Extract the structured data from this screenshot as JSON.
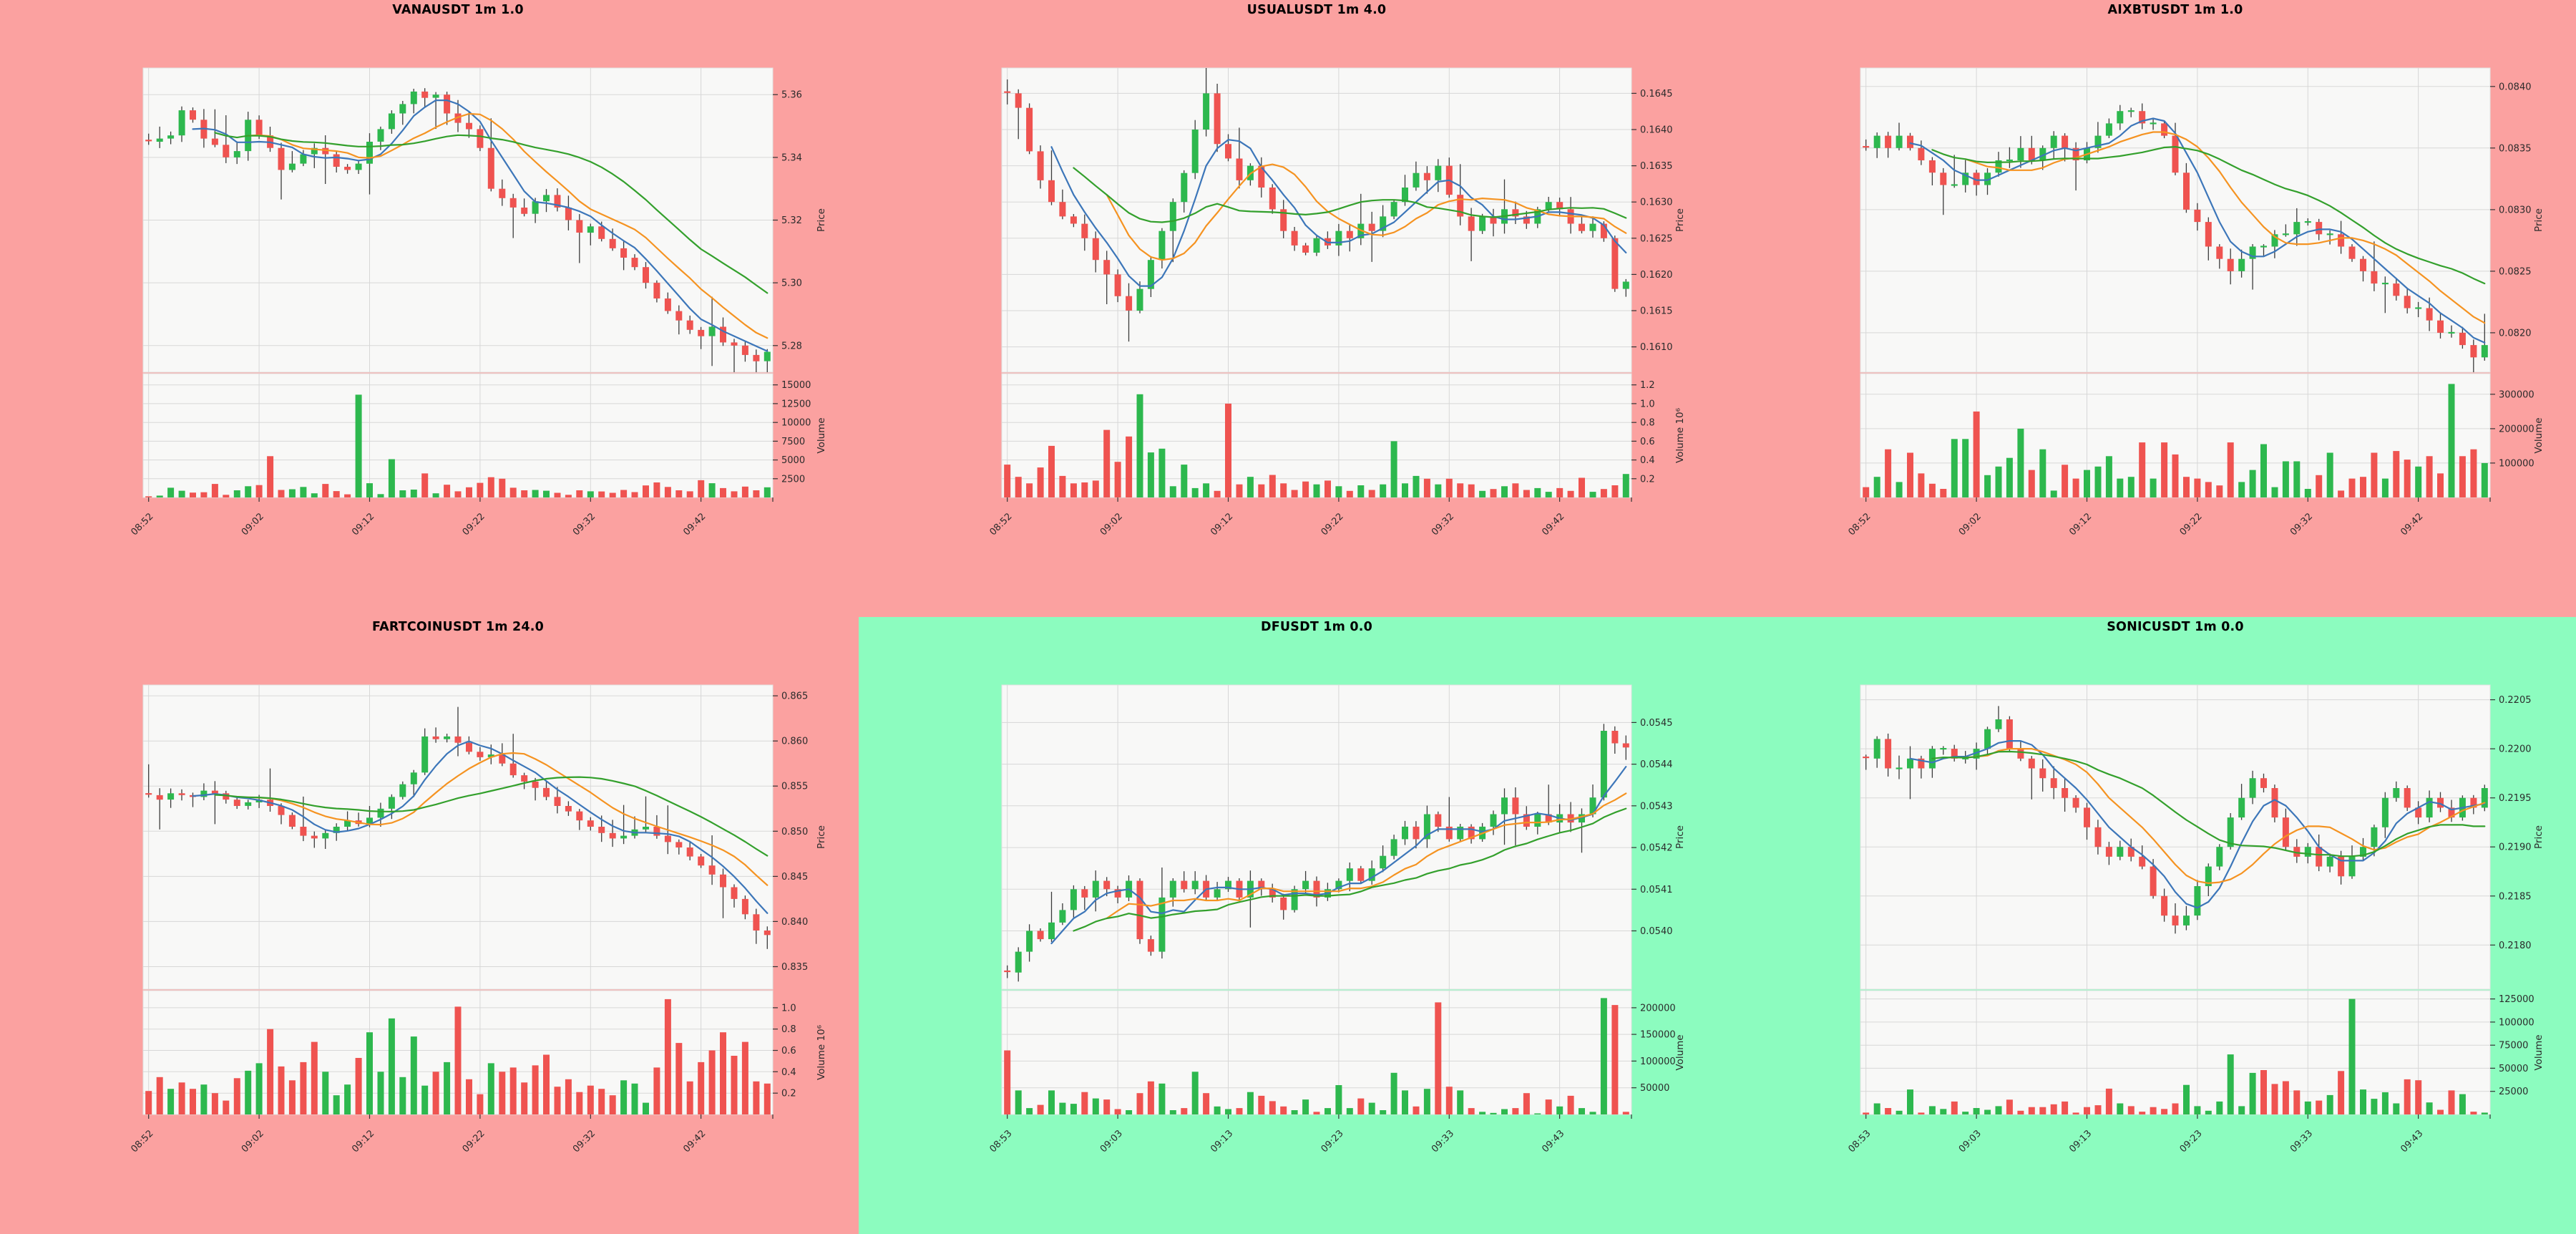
{
  "colors": {
    "up": "#2db84e",
    "down": "#ef5350",
    "wick": "#3b3b3b",
    "ma_fast": "#3c76b9",
    "ma_mid": "#f59321",
    "ma_slow": "#33a02c",
    "plot_bg": "#f8f8f7",
    "grid": "#d7d7d7",
    "frame": "#e2e2e2",
    "tick_text": "#2b2b2b",
    "bg_loss": "#fba1a0",
    "bg_gain": "#8cfcbf"
  },
  "chart_data": [
    {
      "type": "candlestick",
      "title": "VANAUSDT 1m 1.0",
      "background": "#fba1a0",
      "ylabel": "Price",
      "ylabel2": "Volume",
      "x_tick_labels": [
        "08:52",
        "09:02",
        "09:12",
        "09:22",
        "09:32",
        "09:42"
      ],
      "price_ticks": [
        5.36,
        5.34,
        5.32,
        5.3,
        5.28
      ],
      "price_tick_labels": [
        "5.36",
        "5.34",
        "5.32",
        "5.30",
        "5.28"
      ],
      "price_range": [
        5.2715,
        5.3685
      ],
      "volume_ticks": [
        15000,
        12500,
        10000,
        7500,
        5000,
        2500
      ],
      "volume_tick_labels": [
        "15000",
        "12500",
        "10000",
        "7500",
        "5000",
        "2500"
      ],
      "volume_max": 16500,
      "close": [
        5.345,
        5.346,
        5.347,
        5.355,
        5.352,
        5.346,
        5.344,
        5.34,
        5.342,
        5.352,
        5.347,
        5.343,
        5.336,
        5.338,
        5.341,
        5.343,
        5.341,
        5.337,
        5.336,
        5.338,
        5.345,
        5.349,
        5.354,
        5.357,
        5.361,
        5.359,
        5.36,
        5.354,
        5.351,
        5.349,
        5.343,
        5.33,
        5.327,
        5.324,
        5.322,
        5.326,
        5.328,
        5.324,
        5.32,
        5.316,
        5.318,
        5.314,
        5.311,
        5.308,
        5.305,
        5.3,
        5.295,
        5.291,
        5.288,
        5.285,
        5.283,
        5.286,
        5.281,
        5.28,
        5.277,
        5.275,
        5.278
      ],
      "volume": [
        150,
        250,
        1300,
        900,
        650,
        700,
        1800,
        350,
        950,
        1500,
        1650,
        5500,
        1000,
        1100,
        1400,
        550,
        1800,
        850,
        420,
        13700,
        1900,
        450,
        5100,
        950,
        1050,
        3200,
        550,
        1700,
        820,
        1350,
        1950,
        2700,
        2500,
        1300,
        950,
        1000,
        900,
        620,
        350,
        950,
        820,
        800,
        620,
        1000,
        720,
        1600,
        2000,
        1400,
        950,
        820,
        2300,
        1900,
        1250,
        820,
        1450,
        950,
        1350
      ]
    },
    {
      "type": "candlestick",
      "title": "USUALUSDT 1m 4.0",
      "background": "#fba1a0",
      "ylabel": "Price",
      "ylabel2": "Volume 10⁶",
      "x_tick_labels": [
        "08:52",
        "09:02",
        "09:12",
        "09:22",
        "09:32",
        "09:42"
      ],
      "price_ticks": [
        0.1645,
        0.164,
        0.1635,
        0.163,
        0.1625,
        0.162,
        0.1615,
        0.161
      ],
      "price_tick_labels": [
        "0.1645",
        "0.1640",
        "0.1635",
        "0.1630",
        "0.1625",
        "0.1620",
        "0.1615",
        "0.1610"
      ],
      "price_range": [
        0.16065,
        0.16485
      ],
      "volume_ticks": [
        1.2,
        1.0,
        0.8,
        0.6,
        0.4,
        0.2
      ],
      "volume_tick_labels": [
        "1.2",
        "1.0",
        "0.8",
        "0.6",
        "0.4",
        "0.2"
      ],
      "volume_max": 1.32,
      "close": [
        0.1645,
        0.1643,
        0.1637,
        0.1633,
        0.163,
        0.1628,
        0.1627,
        0.1625,
        0.1622,
        0.162,
        0.1617,
        0.1615,
        0.1618,
        0.1622,
        0.1626,
        0.163,
        0.1634,
        0.164,
        0.1645,
        0.1638,
        0.1636,
        0.1633,
        0.1635,
        0.1632,
        0.1629,
        0.1626,
        0.1624,
        0.1623,
        0.1625,
        0.1624,
        0.1626,
        0.1625,
        0.1627,
        0.1626,
        0.1628,
        0.163,
        0.1632,
        0.1634,
        0.1633,
        0.1635,
        0.1631,
        0.1628,
        0.1626,
        0.1628,
        0.1627,
        0.1629,
        0.1628,
        0.1627,
        0.1629,
        0.163,
        0.1629,
        0.1627,
        0.1626,
        0.1627,
        0.1625,
        0.1618,
        0.1619
      ],
      "volume": [
        0.35,
        0.22,
        0.15,
        0.32,
        0.55,
        0.23,
        0.15,
        0.16,
        0.18,
        0.72,
        0.38,
        0.65,
        1.1,
        0.48,
        0.52,
        0.12,
        0.35,
        0.1,
        0.15,
        0.07,
        1.0,
        0.14,
        0.22,
        0.14,
        0.24,
        0.15,
        0.08,
        0.17,
        0.14,
        0.18,
        0.12,
        0.07,
        0.13,
        0.08,
        0.14,
        0.6,
        0.15,
        0.23,
        0.2,
        0.14,
        0.2,
        0.15,
        0.14,
        0.07,
        0.09,
        0.12,
        0.15,
        0.08,
        0.1,
        0.06,
        0.1,
        0.07,
        0.21,
        0.06,
        0.09,
        0.13,
        0.25
      ]
    },
    {
      "type": "candlestick",
      "title": "AIXBTUSDT 1m 1.0",
      "background": "#fba1a0",
      "ylabel": "Price",
      "ylabel2": "Volume",
      "x_tick_labels": [
        "08:52",
        "09:02",
        "09:12",
        "09:22",
        "09:32",
        "09:42"
      ],
      "price_ticks": [
        0.084,
        0.0835,
        0.083,
        0.0825,
        0.082
      ],
      "price_tick_labels": [
        "0.0840",
        "0.0835",
        "0.0830",
        "0.0825",
        "0.0820"
      ],
      "price_range": [
        0.08168,
        0.08415
      ],
      "volume_ticks": [
        300000,
        200000,
        100000
      ],
      "volume_tick_labels": [
        "300000",
        "200000",
        "100000"
      ],
      "volume_max": 360000,
      "close": [
        0.0835,
        0.0836,
        0.0835,
        0.0836,
        0.0835,
        0.0834,
        0.0833,
        0.0832,
        0.0832,
        0.0833,
        0.0832,
        0.0833,
        0.0834,
        0.0834,
        0.0835,
        0.0834,
        0.0835,
        0.0836,
        0.0835,
        0.0834,
        0.0835,
        0.0836,
        0.0837,
        0.0838,
        0.0838,
        0.0837,
        0.0837,
        0.0836,
        0.0833,
        0.083,
        0.0829,
        0.0827,
        0.0826,
        0.0825,
        0.0826,
        0.0827,
        0.0827,
        0.0828,
        0.0828,
        0.0829,
        0.0829,
        0.0828,
        0.0828,
        0.0827,
        0.0826,
        0.0825,
        0.0824,
        0.0824,
        0.0823,
        0.0822,
        0.0822,
        0.0821,
        0.082,
        0.082,
        0.0819,
        0.0818,
        0.0819
      ],
      "volume": [
        30000,
        60000,
        140000,
        45000,
        130000,
        70000,
        40000,
        25000,
        170000,
        170000,
        250000,
        65000,
        90000,
        115000,
        200000,
        80000,
        140000,
        20000,
        95000,
        55000,
        80000,
        90000,
        120000,
        55000,
        60000,
        160000,
        55000,
        160000,
        125000,
        60000,
        55000,
        45000,
        35000,
        160000,
        45000,
        80000,
        155000,
        30000,
        105000,
        105000,
        25000,
        65000,
        130000,
        20000,
        55000,
        60000,
        130000,
        55000,
        135000,
        110000,
        90000,
        120000,
        70000,
        330000,
        120000,
        140000,
        100000
      ]
    },
    {
      "type": "candlestick",
      "title": "FARTCOINUSDT 1m 24.0",
      "background": "#fba1a0",
      "ylabel": "Price",
      "ylabel2": "Volume 10⁶",
      "x_tick_labels": [
        "08:52",
        "09:02",
        "09:12",
        "09:22",
        "09:32",
        "09:42"
      ],
      "price_ticks": [
        0.865,
        0.86,
        0.855,
        0.85,
        0.845,
        0.84,
        0.835
      ],
      "price_tick_labels": [
        "0.865",
        "0.860",
        "0.855",
        "0.850",
        "0.845",
        "0.840",
        "0.835"
      ],
      "price_range": [
        0.8325,
        0.8662
      ],
      "volume_ticks": [
        1.0,
        0.8,
        0.6,
        0.4,
        0.2
      ],
      "volume_tick_labels": [
        "1.0",
        "0.8",
        "0.6",
        "0.4",
        "0.2"
      ],
      "volume_max": 1.16,
      "close": [
        0.854,
        0.8535,
        0.8542,
        0.854,
        0.8538,
        0.8545,
        0.8542,
        0.8535,
        0.8528,
        0.8532,
        0.8535,
        0.8528,
        0.8518,
        0.8505,
        0.8495,
        0.8492,
        0.8498,
        0.8505,
        0.8512,
        0.8508,
        0.8515,
        0.8525,
        0.8538,
        0.8552,
        0.8565,
        0.8605,
        0.8602,
        0.8605,
        0.8598,
        0.8588,
        0.8582,
        0.8585,
        0.8575,
        0.8562,
        0.8555,
        0.8548,
        0.8538,
        0.8528,
        0.8522,
        0.8512,
        0.8505,
        0.8498,
        0.8492,
        0.8495,
        0.8502,
        0.8505,
        0.8495,
        0.8488,
        0.8482,
        0.8472,
        0.8462,
        0.8452,
        0.8438,
        0.8425,
        0.8408,
        0.839,
        0.8385
      ],
      "volume": [
        0.22,
        0.35,
        0.24,
        0.3,
        0.24,
        0.28,
        0.2,
        0.13,
        0.34,
        0.41,
        0.48,
        0.8,
        0.45,
        0.32,
        0.49,
        0.68,
        0.4,
        0.18,
        0.28,
        0.53,
        0.77,
        0.4,
        0.9,
        0.35,
        0.73,
        0.27,
        0.4,
        0.49,
        1.01,
        0.33,
        0.19,
        0.48,
        0.4,
        0.44,
        0.3,
        0.46,
        0.56,
        0.26,
        0.33,
        0.21,
        0.27,
        0.24,
        0.18,
        0.32,
        0.29,
        0.11,
        0.44,
        1.08,
        0.67,
        0.31,
        0.49,
        0.6,
        0.77,
        0.55,
        0.68,
        0.31,
        0.29
      ]
    },
    {
      "type": "candlestick",
      "title": "DFUSDT 1m 0.0",
      "background": "#8cfcbf",
      "ylabel": "Price",
      "ylabel2": "Volume",
      "x_tick_labels": [
        "08:53",
        "09:03",
        "09:13",
        "09:23",
        "09:33",
        "09:43"
      ],
      "price_ticks": [
        0.0545,
        0.0544,
        0.0543,
        0.0542,
        0.0541,
        0.054
      ],
      "price_tick_labels": [
        "0.0545",
        "0.0544",
        "0.0543",
        "0.0542",
        "0.0541",
        "0.0540"
      ],
      "price_range": [
        0.05386,
        0.05459
      ],
      "volume_ticks": [
        200000,
        150000,
        100000,
        50000
      ],
      "volume_tick_labels": [
        "200000",
        "150000",
        "100000",
        "50000"
      ],
      "volume_max": 232000,
      "close": [
        0.0539,
        0.05395,
        0.054,
        0.05398,
        0.05402,
        0.05405,
        0.0541,
        0.05408,
        0.05412,
        0.0541,
        0.05408,
        0.05412,
        0.05398,
        0.05395,
        0.05408,
        0.05412,
        0.0541,
        0.05412,
        0.05408,
        0.0541,
        0.05412,
        0.05408,
        0.05412,
        0.0541,
        0.05408,
        0.05405,
        0.0541,
        0.05412,
        0.05408,
        0.0541,
        0.05412,
        0.05415,
        0.05412,
        0.05415,
        0.05418,
        0.05422,
        0.05425,
        0.05422,
        0.05428,
        0.05425,
        0.05422,
        0.05425,
        0.05422,
        0.05425,
        0.05428,
        0.05432,
        0.05428,
        0.05425,
        0.05428,
        0.05426,
        0.05428,
        0.05426,
        0.05428,
        0.05432,
        0.05448,
        0.05445,
        0.05444
      ],
      "volume": [
        120000,
        45000,
        12000,
        18000,
        45000,
        22000,
        20000,
        42000,
        30000,
        28000,
        10000,
        8000,
        40000,
        62000,
        58000,
        8000,
        12000,
        80000,
        40000,
        15000,
        10000,
        12000,
        42000,
        35000,
        25000,
        15000,
        8000,
        28000,
        5000,
        12000,
        55000,
        12000,
        30000,
        22000,
        8000,
        78000,
        45000,
        15000,
        48000,
        210000,
        52000,
        45000,
        12000,
        5000,
        3000,
        10000,
        12000,
        40000,
        2000,
        28000,
        15000,
        35000,
        12000,
        5000,
        218000,
        205000,
        5000
      ]
    },
    {
      "type": "candlestick",
      "title": "SONICUSDT 1m 0.0",
      "background": "#8cfcbf",
      "ylabel": "Price",
      "ylabel2": "Volume",
      "x_tick_labels": [
        "08:53",
        "09:03",
        "09:13",
        "09:23",
        "09:33",
        "09:43"
      ],
      "price_ticks": [
        0.2205,
        0.22,
        0.2195,
        0.219,
        0.2185,
        0.218
      ],
      "price_tick_labels": [
        "0.2205",
        "0.2200",
        "0.2195",
        "0.2190",
        "0.2185",
        "0.2180"
      ],
      "price_range": [
        0.21755,
        0.22065
      ],
      "volume_ticks": [
        125000,
        100000,
        75000,
        50000,
        25000
      ],
      "volume_tick_labels": [
        "125000",
        "100000",
        "75000",
        "50000",
        "25000"
      ],
      "volume_max": 134000,
      "close": [
        0.2199,
        0.2201,
        0.2198,
        0.2198,
        0.2199,
        0.2198,
        0.22,
        0.22,
        0.2199,
        0.2199,
        0.22,
        0.2202,
        0.2203,
        0.22,
        0.2199,
        0.2198,
        0.2197,
        0.2196,
        0.2195,
        0.2194,
        0.2192,
        0.219,
        0.2189,
        0.219,
        0.2189,
        0.2188,
        0.2185,
        0.2183,
        0.2182,
        0.2183,
        0.2186,
        0.2188,
        0.219,
        0.2193,
        0.2195,
        0.2197,
        0.2196,
        0.2193,
        0.219,
        0.2189,
        0.219,
        0.2188,
        0.2189,
        0.2187,
        0.2189,
        0.219,
        0.2192,
        0.2195,
        0.2196,
        0.2194,
        0.2193,
        0.2195,
        0.2194,
        0.2193,
        0.2195,
        0.2194,
        0.2196
      ],
      "volume": [
        2000,
        12000,
        7000,
        4000,
        27000,
        2000,
        9000,
        6000,
        14000,
        3000,
        7000,
        5000,
        9000,
        16000,
        4000,
        8000,
        8000,
        11000,
        14000,
        2000,
        8000,
        10000,
        28000,
        12000,
        9000,
        3000,
        8000,
        6000,
        12000,
        32000,
        9000,
        4000,
        14000,
        65000,
        9000,
        45000,
        48000,
        33000,
        36000,
        26000,
        14000,
        15000,
        21000,
        47000,
        125000,
        27000,
        17000,
        24000,
        12000,
        38000,
        37000,
        13000,
        5000,
        26000,
        22000,
        3000,
        2000
      ]
    }
  ]
}
